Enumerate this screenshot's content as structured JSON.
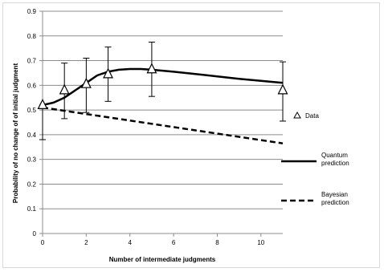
{
  "chart_data": {
    "type": "scatter",
    "xlabel": "Number of intermediate judgments",
    "ylabel": "Probability of no change of of initial judgment",
    "xlim": [
      0,
      11
    ],
    "ylim": [
      0,
      0.9
    ],
    "x_ticks": [
      "0",
      "2",
      "4",
      "6",
      "8",
      "10"
    ],
    "y_ticks": [
      "0",
      "0.1",
      "0.2",
      "0.3",
      "0.4",
      "0.5",
      "0.6",
      "0.7",
      "0.8",
      "0.9"
    ],
    "grid": true,
    "legend_position": "right",
    "series": [
      {
        "name": "Data",
        "style": "triangle-markers",
        "color": "#000000",
        "points": [
          {
            "x": 0,
            "y": 0.52,
            "err_low": 0.38,
            "err_high": 0.52
          },
          {
            "x": 1,
            "y": 0.58,
            "err_low": 0.465,
            "err_high": 0.69
          },
          {
            "x": 2,
            "y": 0.605,
            "err_low": 0.49,
            "err_high": 0.71
          },
          {
            "x": 3,
            "y": 0.645,
            "err_low": 0.535,
            "err_high": 0.755
          },
          {
            "x": 5,
            "y": 0.665,
            "err_low": 0.555,
            "err_high": 0.775
          },
          {
            "x": 11,
            "y": 0.58,
            "err_low": 0.455,
            "err_high": 0.695
          }
        ]
      },
      {
        "name": "Quantum prediction",
        "style": "solid-line",
        "color": "#000000",
        "x": [
          0,
          0.5,
          1,
          1.5,
          2,
          2.5,
          3,
          3.5,
          4,
          4.5,
          5,
          6,
          7,
          8,
          9,
          10,
          11
        ],
        "y": [
          0.52,
          0.53,
          0.55,
          0.58,
          0.61,
          0.64,
          0.655,
          0.663,
          0.666,
          0.666,
          0.663,
          0.655,
          0.646,
          0.636,
          0.626,
          0.618,
          0.61
        ]
      },
      {
        "name": "Bayesian prediction",
        "style": "dashed-line",
        "color": "#000000",
        "x": [
          0,
          11
        ],
        "y": [
          0.51,
          0.365
        ]
      }
    ],
    "legend": [
      {
        "label": "Data",
        "style": "triangle-markers"
      },
      {
        "label": "Quantum\nprediction",
        "style": "solid-line"
      },
      {
        "label": "Bayesian\nprediction",
        "style": "dashed-line"
      }
    ]
  }
}
